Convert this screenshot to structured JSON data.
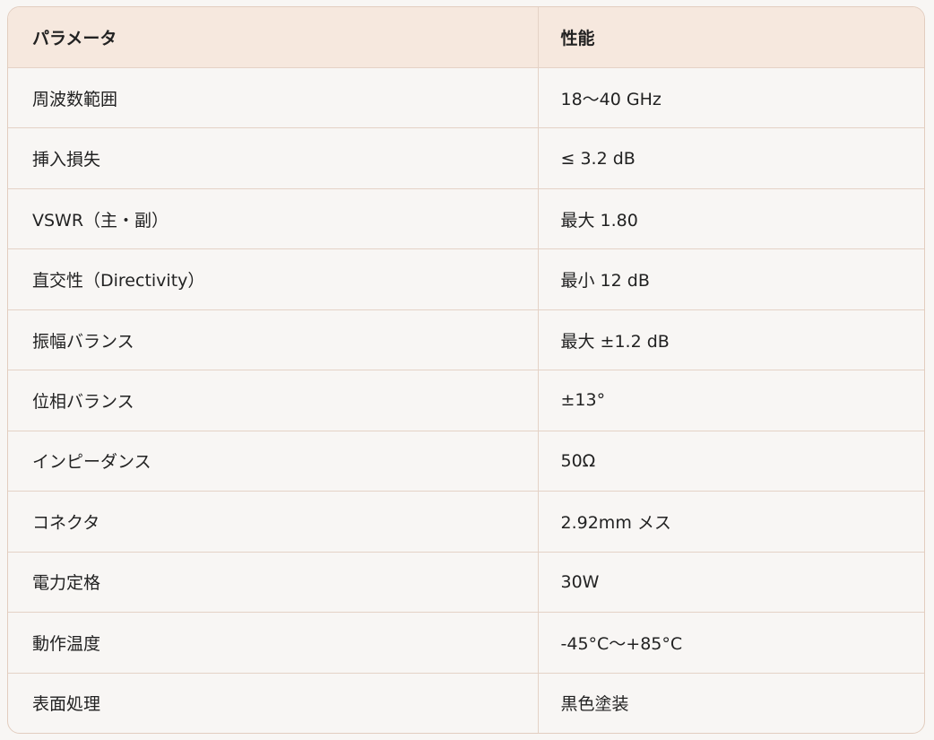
{
  "table": {
    "headers": [
      "パラメータ",
      "性能"
    ],
    "rows": [
      [
        "周波数範囲",
        "18〜40 GHz"
      ],
      [
        "挿入損失",
        "≤ 3.2 dB"
      ],
      [
        "VSWR（主・副）",
        "最大 1.80"
      ],
      [
        "直交性（Directivity）",
        "最小 12 dB"
      ],
      [
        "振幅バランス",
        "最大 ±1.2 dB"
      ],
      [
        "位相バランス",
        "±13°"
      ],
      [
        "インピーダンス",
        "50Ω"
      ],
      [
        "コネクタ",
        "2.92mm メス"
      ],
      [
        "電力定格",
        "30W"
      ],
      [
        "動作温度",
        "-45°C〜+85°C"
      ],
      [
        "表面処理",
        "黒色塗装"
      ]
    ]
  },
  "colors": {
    "header_bg": "#f6e8de",
    "body_bg": "#f8f6f4",
    "border": "#e4d2c6"
  }
}
